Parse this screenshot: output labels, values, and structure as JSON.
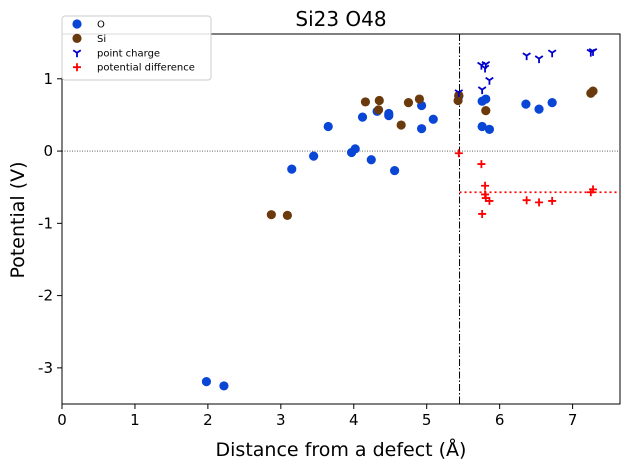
{
  "chart_data": {
    "type": "scatter",
    "title": "Si23 O48",
    "xlabel": "Distance from a defect (Å)",
    "ylabel": "Potential (V)",
    "xlim": [
      0,
      7.65
    ],
    "ylim": [
      -3.5,
      1.62
    ],
    "x_ticks": [
      0,
      1,
      2,
      3,
      4,
      5,
      6,
      7
    ],
    "y_ticks": [
      -3,
      -2,
      -1,
      0,
      1
    ],
    "y_tick_labels": [
      "-3",
      "-2",
      "-1",
      "0",
      "1"
    ],
    "grid": false,
    "legend_position": "top-left",
    "reference_lines": {
      "horizontal_zero": {
        "y": 0,
        "style": "dotted",
        "color": "#000000"
      },
      "vertical_defect": {
        "x": 5.45,
        "style": "dash-dot",
        "color": "#000000"
      },
      "average_difference": {
        "y": -0.57,
        "x_from": 5.45,
        "style": "dotted",
        "color": "#ff0000"
      }
    },
    "series": [
      {
        "name": "O",
        "marker": "circle",
        "color": "#0a46d6",
        "points": [
          [
            1.98,
            -3.19
          ],
          [
            2.22,
            -3.25
          ],
          [
            3.15,
            -0.25
          ],
          [
            3.45,
            -0.07
          ],
          [
            3.65,
            0.34
          ],
          [
            3.97,
            -0.02
          ],
          [
            4.02,
            0.03
          ],
          [
            4.12,
            0.47
          ],
          [
            4.24,
            -0.12
          ],
          [
            4.32,
            0.55
          ],
          [
            4.48,
            0.52
          ],
          [
            4.48,
            0.49
          ],
          [
            4.56,
            -0.27
          ],
          [
            4.93,
            0.63
          ],
          [
            4.93,
            0.31
          ],
          [
            5.09,
            0.44
          ],
          [
            5.44,
            0.76
          ],
          [
            5.76,
            0.69
          ],
          [
            5.76,
            0.34
          ],
          [
            5.81,
            0.72
          ],
          [
            5.86,
            0.3
          ],
          [
            6.36,
            0.65
          ],
          [
            6.54,
            0.58
          ],
          [
            6.72,
            0.67
          ]
        ]
      },
      {
        "name": "Si",
        "marker": "circle",
        "color": "#6b3a0c",
        "points": [
          [
            2.87,
            -0.88
          ],
          [
            3.09,
            -0.89
          ],
          [
            4.16,
            0.68
          ],
          [
            4.34,
            0.57
          ],
          [
            4.35,
            0.7
          ],
          [
            4.65,
            0.36
          ],
          [
            4.75,
            0.67
          ],
          [
            4.9,
            0.72
          ],
          [
            5.43,
            0.7
          ],
          [
            5.44,
            0.77
          ],
          [
            5.81,
            0.56
          ],
          [
            7.25,
            0.8
          ],
          [
            7.28,
            0.83
          ]
        ]
      },
      {
        "name": "point charge",
        "marker": "tri_down",
        "color": "#0000cc",
        "points": [
          [
            5.44,
            0.81
          ],
          [
            5.75,
            1.19
          ],
          [
            5.76,
            0.85
          ],
          [
            5.8,
            1.15
          ],
          [
            5.81,
            1.2
          ],
          [
            5.86,
            0.98
          ],
          [
            6.37,
            1.32
          ],
          [
            6.54,
            1.28
          ],
          [
            6.72,
            1.36
          ],
          [
            7.25,
            1.37
          ],
          [
            7.28,
            1.38
          ]
        ]
      },
      {
        "name": "potential difference",
        "marker": "plus",
        "color": "#ff0000",
        "points": [
          [
            5.44,
            -0.03
          ],
          [
            5.75,
            -0.18
          ],
          [
            5.76,
            -0.87
          ],
          [
            5.8,
            -0.48
          ],
          [
            5.8,
            -0.6
          ],
          [
            5.81,
            -0.65
          ],
          [
            5.86,
            -0.69
          ],
          [
            6.37,
            -0.68
          ],
          [
            6.54,
            -0.71
          ],
          [
            6.72,
            -0.69
          ],
          [
            7.25,
            -0.57
          ],
          [
            7.28,
            -0.53
          ]
        ]
      }
    ]
  }
}
